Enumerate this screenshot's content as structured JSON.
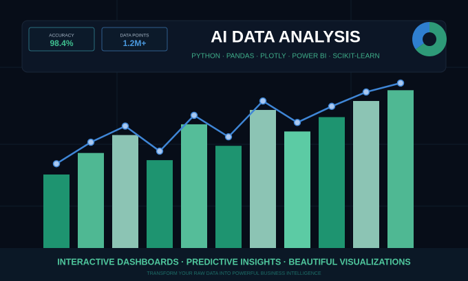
{
  "chart_data": {
    "type": "bar",
    "title": "AI DATA ANALYSIS",
    "subtitle": "PYTHON · PANDAS · PLOTLY · POWER BI · SCIKIT-LEARN",
    "stats": [
      {
        "label": "ACCURACY",
        "value": "98.4%"
      },
      {
        "label": "DATA POINTS",
        "value": "1.2M+"
      }
    ],
    "ylim": [
      0,
      100
    ],
    "series": [
      {
        "type": "bar",
        "values": [
          41,
          53,
          63,
          49,
          69,
          57,
          77,
          65,
          73,
          82,
          88
        ],
        "colors": [
          "#1e9470",
          "#4fb893",
          "#8cc4b4",
          "#1e9470",
          "#55bd99",
          "#1e9470",
          "#8cc4b4",
          "#5ccba4",
          "#1e9470",
          "#8cc4b4",
          "#4fb893"
        ]
      },
      {
        "type": "line",
        "color": "#3f86d6",
        "values": [
          47,
          59,
          68,
          54,
          74,
          62,
          82,
          70,
          79,
          87,
          92
        ]
      }
    ],
    "donut": {
      "values": [
        65,
        35
      ],
      "colors": [
        "#2e9a78",
        "#2f7fd0"
      ]
    },
    "annotations": [
      "INTERACTIVE DASHBOARDS · PREDICTIVE INSIGHTS · BEAUTIFUL VISUALIZATIONS",
      "TRANSFORM YOUR RAW DATA INTO POWERFUL BUSINESS INTELLIGENCE"
    ]
  }
}
